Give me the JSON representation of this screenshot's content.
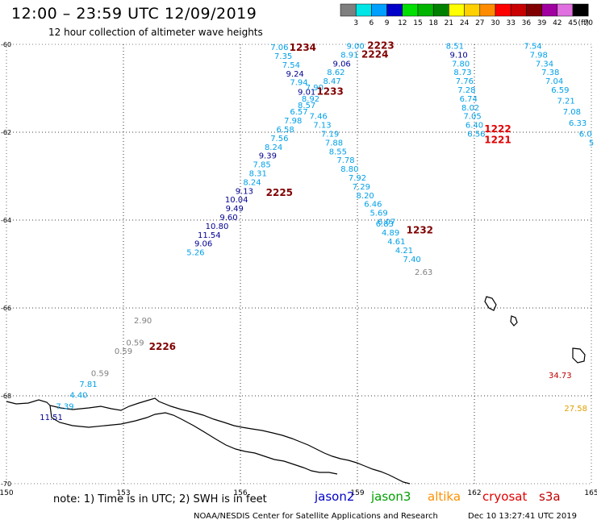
{
  "title": "12:00 – 23:59 UTC 12/09/2019",
  "subtitle": "12 hour collection of altimeter wave heights",
  "legend": {
    "unit": "(ft)",
    "swatches": [
      {
        "label": "3",
        "color": "#7f7f7f"
      },
      {
        "label": "6",
        "color": "#00e5e5"
      },
      {
        "label": "9",
        "color": "#00a0ff"
      },
      {
        "label": "12",
        "color": "#0000c8"
      },
      {
        "label": "15",
        "color": "#00e000"
      },
      {
        "label": "18",
        "color": "#00b400"
      },
      {
        "label": "21",
        "color": "#008000"
      },
      {
        "label": "24",
        "color": "#ffff00"
      },
      {
        "label": "27",
        "color": "#ffd000"
      },
      {
        "label": "30",
        "color": "#ff8c00"
      },
      {
        "label": "33",
        "color": "#ff0000"
      },
      {
        "label": "36",
        "color": "#c80000"
      },
      {
        "label": "39",
        "color": "#800000"
      },
      {
        "label": "42",
        "color": "#a000a0"
      },
      {
        "label": "45",
        "color": "#e070e0"
      },
      {
        "label": "70",
        "color": "#000000"
      }
    ]
  },
  "axes": {
    "lon_ticks": [
      "150",
      "153",
      "156",
      "159",
      "162",
      "165"
    ],
    "lat_ticks": [
      "-60",
      "-62",
      "-64",
      "-66",
      "-68",
      "-70"
    ]
  },
  "map_view": {
    "lon_range": [
      150,
      165
    ],
    "lat_range": [
      -70,
      -60
    ]
  },
  "colors": {
    "light": "#00a0e8",
    "dark": "#000090",
    "gray": "#808080",
    "time": "#800000",
    "time_red": "#e00000",
    "orange": "#e0a000",
    "dred": "#c00000"
  },
  "points": [
    {
      "v": "7.06",
      "lon": 157.0,
      "lat": -60.13,
      "c": "light"
    },
    {
      "v": "7.35",
      "lon": 157.1,
      "lat": -60.33,
      "c": "light"
    },
    {
      "v": "7.54",
      "lon": 157.3,
      "lat": -60.53,
      "c": "light"
    },
    {
      "v": "9.24",
      "lon": 157.4,
      "lat": -60.73,
      "c": "dark"
    },
    {
      "v": "7.94",
      "lon": 157.5,
      "lat": -60.93,
      "c": "light"
    },
    {
      "v": "9.01",
      "lon": 157.7,
      "lat": -61.15,
      "c": "dark"
    },
    {
      "v": "7.90",
      "lon": 157.9,
      "lat": -61.05,
      "c": "light"
    },
    {
      "v": "8.92",
      "lon": 157.8,
      "lat": -61.3,
      "c": "light"
    },
    {
      "v": "8.57",
      "lon": 157.7,
      "lat": -61.45,
      "c": "light"
    },
    {
      "v": "6.57",
      "lon": 157.5,
      "lat": -61.6,
      "c": "light"
    },
    {
      "v": "7.46",
      "lon": 158.0,
      "lat": -61.7,
      "c": "light"
    },
    {
      "v": "7.98",
      "lon": 157.35,
      "lat": -61.8,
      "c": "light"
    },
    {
      "v": "7.13",
      "lon": 158.1,
      "lat": -61.9,
      "c": "light"
    },
    {
      "v": "6.58",
      "lon": 157.15,
      "lat": -62.0,
      "c": "light"
    },
    {
      "v": "7.19",
      "lon": 158.3,
      "lat": -62.1,
      "c": "light"
    },
    {
      "v": "7.56",
      "lon": 157.0,
      "lat": -62.2,
      "c": "light"
    },
    {
      "v": "7.88",
      "lon": 158.4,
      "lat": -62.3,
      "c": "light"
    },
    {
      "v": "8.24",
      "lon": 156.85,
      "lat": -62.4,
      "c": "light"
    },
    {
      "v": "8.55",
      "lon": 158.5,
      "lat": -62.5,
      "c": "light"
    },
    {
      "v": "9.39",
      "lon": 156.7,
      "lat": -62.6,
      "c": "dark"
    },
    {
      "v": "7.78",
      "lon": 158.7,
      "lat": -62.7,
      "c": "light"
    },
    {
      "v": "7.85",
      "lon": 156.55,
      "lat": -62.8,
      "c": "light"
    },
    {
      "v": "8.80",
      "lon": 158.8,
      "lat": -62.9,
      "c": "light"
    },
    {
      "v": "8.31",
      "lon": 156.45,
      "lat": -63.0,
      "c": "light"
    },
    {
      "v": "7.92",
      "lon": 159.0,
      "lat": -63.1,
      "c": "light"
    },
    {
      "v": "8.24",
      "lon": 156.3,
      "lat": -63.2,
      "c": "light"
    },
    {
      "v": "7.29",
      "lon": 159.1,
      "lat": -63.3,
      "c": "light"
    },
    {
      "v": "9.13",
      "lon": 156.1,
      "lat": -63.4,
      "c": "dark"
    },
    {
      "v": "8.20",
      "lon": 159.2,
      "lat": -63.5,
      "c": "light"
    },
    {
      "v": "10.04",
      "lon": 155.9,
      "lat": -63.6,
      "c": "dark"
    },
    {
      "v": "6.46",
      "lon": 159.4,
      "lat": -63.7,
      "c": "light"
    },
    {
      "v": "9.49",
      "lon": 155.85,
      "lat": -63.8,
      "c": "dark"
    },
    {
      "v": "5.69",
      "lon": 159.55,
      "lat": -63.9,
      "c": "light"
    },
    {
      "v": "9.60",
      "lon": 155.7,
      "lat": -64.0,
      "c": "dark"
    },
    {
      "v": "6.07",
      "lon": 159.75,
      "lat": -64.1,
      "c": "light"
    },
    {
      "v": "6.83",
      "lon": 159.7,
      "lat": -64.15,
      "c": "light"
    },
    {
      "v": "10.80",
      "lon": 155.4,
      "lat": -64.2,
      "c": "dark"
    },
    {
      "v": "4.89",
      "lon": 159.85,
      "lat": -64.35,
      "c": "light"
    },
    {
      "v": "11.54",
      "lon": 155.2,
      "lat": -64.4,
      "c": "dark"
    },
    {
      "v": "4.61",
      "lon": 160.0,
      "lat": -64.55,
      "c": "light"
    },
    {
      "v": "9.06",
      "lon": 155.05,
      "lat": -64.6,
      "c": "dark"
    },
    {
      "v": "4.21",
      "lon": 160.2,
      "lat": -64.75,
      "c": "light"
    },
    {
      "v": "5.26",
      "lon": 154.85,
      "lat": -64.8,
      "c": "light"
    },
    {
      "v": "7.40",
      "lon": 160.4,
      "lat": -64.95,
      "c": "light"
    },
    {
      "v": "2.63",
      "lon": 160.7,
      "lat": -65.25,
      "c": "gray"
    },
    {
      "v": "9.00",
      "lon": 158.95,
      "lat": -60.1,
      "c": "light"
    },
    {
      "v": "8.91",
      "lon": 158.8,
      "lat": -60.3,
      "c": "light"
    },
    {
      "v": "9.06",
      "lon": 158.6,
      "lat": -60.5,
      "c": "dark"
    },
    {
      "v": "8.62",
      "lon": 158.45,
      "lat": -60.7,
      "c": "light"
    },
    {
      "v": "8.47",
      "lon": 158.35,
      "lat": -60.9,
      "c": "light"
    },
    {
      "v": "8.51",
      "lon": 161.5,
      "lat": -60.1,
      "c": "light"
    },
    {
      "v": "9.10",
      "lon": 161.6,
      "lat": -60.3,
      "c": "dark"
    },
    {
      "v": "7.80",
      "lon": 161.65,
      "lat": -60.5,
      "c": "light"
    },
    {
      "v": "8.73",
      "lon": 161.7,
      "lat": -60.7,
      "c": "light"
    },
    {
      "v": "7.76",
      "lon": 161.75,
      "lat": -60.9,
      "c": "light"
    },
    {
      "v": "7.28",
      "lon": 161.8,
      "lat": -61.1,
      "c": "light"
    },
    {
      "v": "6.74",
      "lon": 161.85,
      "lat": -61.3,
      "c": "light"
    },
    {
      "v": "8.02",
      "lon": 161.9,
      "lat": -61.5,
      "c": "light"
    },
    {
      "v": "7.05",
      "lon": 161.95,
      "lat": -61.7,
      "c": "light"
    },
    {
      "v": "6.40",
      "lon": 162.0,
      "lat": -61.9,
      "c": "light"
    },
    {
      "v": "6.56",
      "lon": 162.05,
      "lat": -62.1,
      "c": "light"
    },
    {
      "v": "7.54",
      "lon": 163.5,
      "lat": -60.1,
      "c": "light"
    },
    {
      "v": "7.98",
      "lon": 163.65,
      "lat": -60.3,
      "c": "light"
    },
    {
      "v": "7.34",
      "lon": 163.8,
      "lat": -60.5,
      "c": "light"
    },
    {
      "v": "7.38",
      "lon": 163.95,
      "lat": -60.7,
      "c": "light"
    },
    {
      "v": "7.04",
      "lon": 164.05,
      "lat": -60.9,
      "c": "light"
    },
    {
      "v": "6.59",
      "lon": 164.2,
      "lat": -61.1,
      "c": "light"
    },
    {
      "v": "7.21",
      "lon": 164.35,
      "lat": -61.35,
      "c": "light"
    },
    {
      "v": "7.08",
      "lon": 164.5,
      "lat": -61.6,
      "c": "light"
    },
    {
      "v": "6.33",
      "lon": 164.65,
      "lat": -61.85,
      "c": "light"
    },
    {
      "v": "6.0",
      "lon": 164.85,
      "lat": -62.1,
      "c": "light"
    },
    {
      "v": "5",
      "lon": 165.0,
      "lat": -62.3,
      "c": "light"
    },
    {
      "v": "2.90",
      "lon": 153.5,
      "lat": -66.35,
      "c": "gray"
    },
    {
      "v": "0.59",
      "lon": 153.3,
      "lat": -66.85,
      "c": "gray"
    },
    {
      "v": "0.59",
      "lon": 153.0,
      "lat": -67.05,
      "c": "gray"
    },
    {
      "v": "0.59",
      "lon": 152.4,
      "lat": -67.55,
      "c": "gray"
    },
    {
      "v": "7.81",
      "lon": 152.1,
      "lat": -67.8,
      "c": "light"
    },
    {
      "v": "4.40",
      "lon": 151.85,
      "lat": -68.05,
      "c": "light"
    },
    {
      "v": "7.39",
      "lon": 151.5,
      "lat": -68.3,
      "c": "light"
    },
    {
      "v": "11.51",
      "lon": 151.15,
      "lat": -68.55,
      "c": "dark"
    },
    {
      "v": "34.73",
      "lon": 164.2,
      "lat": -67.6,
      "c": "dred"
    },
    {
      "v": "27.58",
      "lon": 164.6,
      "lat": -68.35,
      "c": "orange"
    }
  ],
  "times": [
    {
      "t": "1234",
      "lon": 157.6,
      "lat": -60.15,
      "c": "time"
    },
    {
      "t": "2223",
      "lon": 159.6,
      "lat": -60.1,
      "c": "time"
    },
    {
      "t": "2224",
      "lon": 159.45,
      "lat": -60.3,
      "c": "time"
    },
    {
      "t": "1233",
      "lon": 158.3,
      "lat": -61.15,
      "c": "time"
    },
    {
      "t": "2225",
      "lon": 157.0,
      "lat": -63.45,
      "c": "time"
    },
    {
      "t": "1232",
      "lon": 160.6,
      "lat": -64.3,
      "c": "time"
    },
    {
      "t": "1222",
      "lon": 162.6,
      "lat": -62.0,
      "c": "time_red"
    },
    {
      "t": "1221",
      "lon": 162.6,
      "lat": -62.25,
      "c": "time_red"
    },
    {
      "t": "2226",
      "lon": 154.0,
      "lat": -66.95,
      "c": "time"
    }
  ],
  "note": "note: 1) Time is in UTC; 2) SWH is in feet",
  "satellites": [
    {
      "name": "jason2",
      "color": "#0000c8"
    },
    {
      "name": "jason3",
      "color": "#00a000"
    },
    {
      "name": "altika",
      "color": "#ff9000"
    },
    {
      "name": "cryosat",
      "color": "#e00000"
    },
    {
      "name": "s3a",
      "color": "#c00000"
    }
  ],
  "credit": "NOAA/NESDIS Center for Satellite Applications and Research",
  "timestamp": "Dec 10 13:27:41 UTC 2019"
}
